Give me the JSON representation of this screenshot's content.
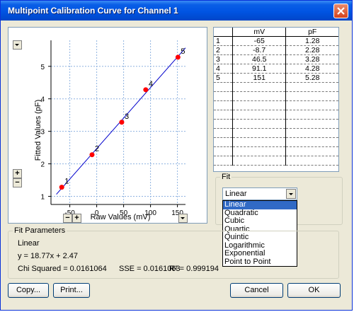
{
  "window": {
    "title": "Multipoint Calibration Curve for Channel 1"
  },
  "chart_data": {
    "type": "scatter",
    "xlabel": "Raw Values (mV)",
    "ylabel": "Fitted Values (pF)",
    "xlim": [
      -85,
      165
    ],
    "ylim": [
      0.75,
      5.8
    ],
    "xticks": [
      -50,
      0,
      50,
      100,
      150
    ],
    "yticks": [
      1,
      2,
      3,
      4,
      5
    ],
    "grid": true,
    "points": [
      {
        "label": "1",
        "x": -65,
        "y": 1.28
      },
      {
        "label": "2",
        "x": -8.7,
        "y": 2.28
      },
      {
        "label": "3",
        "x": 46.5,
        "y": 3.28
      },
      {
        "label": "4",
        "x": 91.1,
        "y": 4.28
      },
      {
        "label": "5",
        "x": 151,
        "y": 5.28
      }
    ],
    "fit_line": {
      "slope": 0.01877,
      "intercept": 2.47,
      "color": "#0000cc"
    },
    "point_color": "#ff0000"
  },
  "table": {
    "headers": [
      "",
      "mV",
      "pF"
    ],
    "rows": [
      [
        "1",
        "-65",
        "1.28"
      ],
      [
        "2",
        "-8.7",
        "2.28"
      ],
      [
        "3",
        "46.5",
        "3.28"
      ],
      [
        "4",
        "91.1",
        "4.28"
      ],
      [
        "5",
        "151",
        "5.28"
      ]
    ],
    "blank_rows": 9
  },
  "fit": {
    "group_label": "Fit",
    "selected": "Linear",
    "options": [
      "Linear",
      "Quadratic",
      "Cubic",
      "Quartic",
      "Quintic",
      "Logarithmic",
      "Exponential",
      "Point to Point"
    ]
  },
  "fit_parameters": {
    "group_label": "Fit Parameters",
    "model": "Linear",
    "equation": "y = 18.77x + 2.47",
    "chi_squared": "Chi Squared = 0.0161064",
    "sse": "SSE = 0.0161063",
    "r_squared": "R² = 0.999194"
  },
  "chart_controls": {
    "plus": "+",
    "minus": "−"
  },
  "buttons": {
    "copy": "Copy...",
    "print": "Print...",
    "cancel": "Cancel",
    "ok": "OK"
  }
}
